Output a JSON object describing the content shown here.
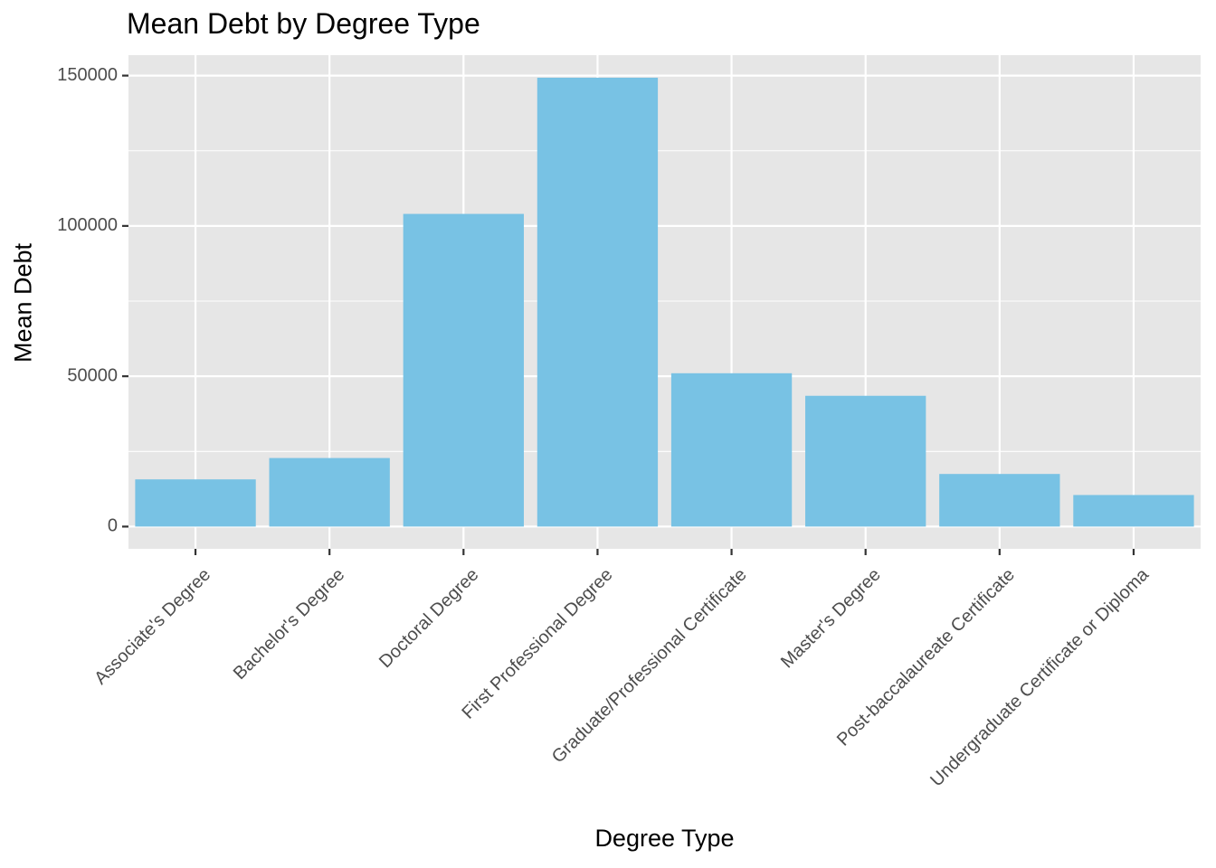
{
  "chart_data": {
    "type": "bar",
    "title": "Mean Debt by Degree Type",
    "xlabel": "Degree Type",
    "ylabel": "Mean Debt",
    "categories": [
      "Associate's Degree",
      "Bachelor's Degree",
      "Doctoral Degree",
      "First Professional Degree",
      "Graduate/Professional Certificate",
      "Master's Degree",
      "Post-baccalaureate Certificate",
      "Undergraduate Certificate or Diploma"
    ],
    "values": [
      15700,
      22800,
      104000,
      149300,
      51000,
      43500,
      17500,
      10500
    ],
    "ylim": [
      -7400,
      156800
    ],
    "yticks": [
      0,
      50000,
      100000,
      150000
    ],
    "ytick_labels": [
      "0",
      "50000",
      "100000",
      "150000"
    ],
    "grid": true,
    "legend": "none",
    "colors": {
      "bar": "#78c2e4",
      "panel": "#e6e6e6",
      "grid": "#ffffff",
      "axis_text": "#4d4d4d",
      "tick": "#333333"
    }
  }
}
